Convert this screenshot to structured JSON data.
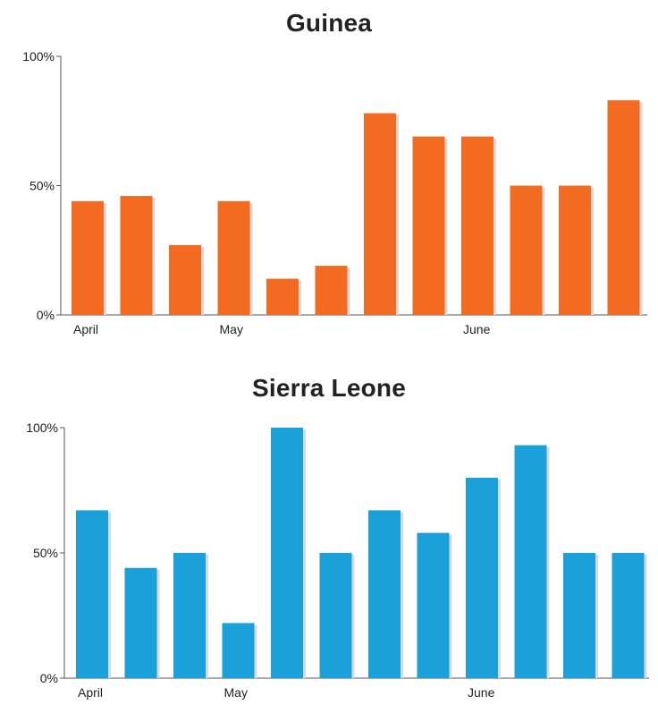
{
  "chart_data": [
    {
      "type": "bar",
      "title": "Guinea",
      "categories": [
        "1",
        "2",
        "3",
        "4",
        "5",
        "6",
        "7",
        "8",
        "9",
        "10",
        "11",
        "12"
      ],
      "values": [
        44,
        46,
        27,
        44,
        14,
        19,
        78,
        69,
        69,
        50,
        50,
        83
      ],
      "ylim": [
        0,
        100
      ],
      "yticks": [
        "0%",
        "50%",
        "100%"
      ],
      "xtick_labels": [
        {
          "label": "April",
          "index": 0
        },
        {
          "label": "May",
          "index": 3
        },
        {
          "label": "June",
          "index": 8
        }
      ],
      "color": "#F26B21",
      "grid": false,
      "legend": "none"
    },
    {
      "type": "bar",
      "title": "Sierra Leone",
      "categories": [
        "1",
        "2",
        "3",
        "4",
        "5",
        "6",
        "7",
        "8",
        "9",
        "10",
        "11",
        "12"
      ],
      "values": [
        67,
        44,
        50,
        22,
        100,
        50,
        67,
        58,
        80,
        93,
        50,
        50
      ],
      "ylim": [
        0,
        100
      ],
      "yticks": [
        "0%",
        "50%",
        "100%"
      ],
      "xtick_labels": [
        {
          "label": "April",
          "index": 0
        },
        {
          "label": "May",
          "index": 3
        },
        {
          "label": "June",
          "index": 8
        }
      ],
      "color": "#1BA1DA",
      "grid": false,
      "legend": "none"
    }
  ]
}
